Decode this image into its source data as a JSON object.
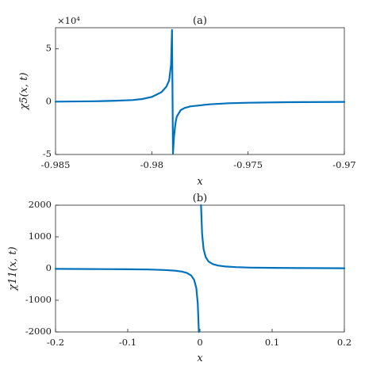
{
  "chart_data": [
    {
      "type": "line",
      "title": "(a)",
      "xlabel": "x",
      "ylabel": "χ5(x, t)",
      "exponent_label": "×10⁴",
      "xlim": [
        -0.985,
        -0.97
      ],
      "ylim": [
        -5,
        7
      ],
      "xticks": [
        -0.985,
        -0.98,
        -0.975,
        -0.97
      ],
      "xtick_labels": [
        "-0.985",
        "-0.98",
        "-0.975",
        "-0.97"
      ],
      "yticks": [
        -5,
        0,
        5
      ],
      "ytick_labels": [
        "-5",
        "0",
        "5"
      ],
      "color": "#0072BD",
      "series": [
        {
          "x": [
            -0.985,
            -0.983,
            -0.982,
            -0.981,
            -0.9805,
            -0.98,
            -0.9795,
            -0.97925,
            -0.9791,
            -0.979,
            -0.97895,
            -0.9789,
            -0.97885,
            -0.9788,
            -0.97875,
            -0.9787,
            -0.9786,
            -0.9785,
            -0.9783,
            -0.978,
            -0.977,
            -0.976,
            -0.975,
            -0.973,
            -0.971,
            -0.97
          ],
          "y": [
            0.0,
            0.04,
            0.08,
            0.15,
            0.25,
            0.45,
            0.9,
            1.4,
            2.0,
            3.5,
            6.8,
            -4.9,
            -3.4,
            -2.5,
            -1.8,
            -1.4,
            -1.1,
            -0.8,
            -0.6,
            -0.45,
            -0.25,
            -0.15,
            -0.1,
            -0.05,
            -0.03,
            -0.02
          ]
        }
      ]
    },
    {
      "type": "line",
      "title": "(b)",
      "xlabel": "x",
      "ylabel": "χ11(x, t)",
      "xlim": [
        -0.2,
        0.2
      ],
      "ylim": [
        -2000,
        2000
      ],
      "xticks": [
        -0.2,
        -0.1,
        0,
        0.1,
        0.2
      ],
      "xtick_labels": [
        "-0.2",
        "-0.1",
        "0",
        "0.1",
        "0.2"
      ],
      "yticks": [
        -2000,
        -1000,
        0,
        1000,
        2000
      ],
      "ytick_labels": [
        "-2000",
        "-1000",
        "0",
        "1000",
        "2000"
      ],
      "color": "#0072BD",
      "series": [
        {
          "x": [
            -0.2,
            -0.15,
            -0.1,
            -0.07,
            -0.05,
            -0.035,
            -0.025,
            -0.018,
            -0.012,
            -0.008,
            -0.005,
            -0.003,
            -0.0015
          ],
          "y": [
            -10,
            -15,
            -22,
            -30,
            -45,
            -65,
            -95,
            -140,
            -220,
            -360,
            -620,
            -1100,
            -2000
          ]
        },
        {
          "x": [
            0.0015,
            0.003,
            0.005,
            0.008,
            0.012,
            0.018,
            0.025,
            0.035,
            0.05,
            0.07,
            0.1,
            0.15,
            0.2
          ],
          "y": [
            2000,
            1100,
            620,
            360,
            220,
            140,
            95,
            65,
            45,
            30,
            22,
            15,
            10
          ]
        }
      ]
    }
  ]
}
